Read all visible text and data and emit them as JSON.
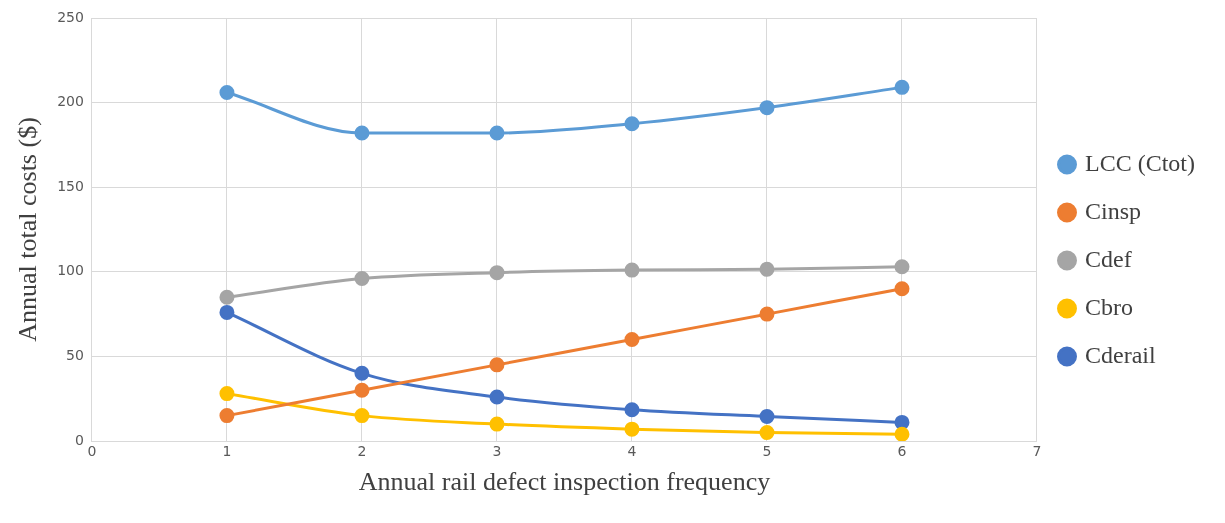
{
  "chart_data": {
    "type": "line",
    "xlabel": "Annual rail defect inspection frequency",
    "ylabel": "Annual total costs ($)",
    "x": [
      1,
      2,
      3,
      4,
      5,
      6
    ],
    "series": [
      {
        "name": "LCC (Ctot)",
        "color": "#5b9bd5",
        "values": [
          206,
          182,
          182,
          187.5,
          197,
          209
        ]
      },
      {
        "name": "Cinsp",
        "color": "#ed7d31",
        "values": [
          15,
          30,
          45,
          60,
          75,
          90
        ]
      },
      {
        "name": "Cdef",
        "color": "#a5a5a5",
        "values": [
          85,
          96,
          99.5,
          101,
          101.5,
          103
        ]
      },
      {
        "name": "Cbro",
        "color": "#ffc000",
        "values": [
          28,
          15,
          10,
          7,
          5,
          4
        ]
      },
      {
        "name": "Cderail",
        "color": "#4472c4",
        "values": [
          76,
          40,
          26,
          18.5,
          14.5,
          11
        ]
      }
    ],
    "xlim": [
      0,
      7
    ],
    "xticks": [
      0,
      1,
      2,
      3,
      4,
      5,
      6,
      7
    ],
    "ylim": [
      0,
      250
    ],
    "yticks": [
      0,
      50,
      100,
      150,
      200,
      250
    ],
    "grid": true,
    "legend": "right",
    "marker": "circle",
    "line_style": "solid"
  }
}
